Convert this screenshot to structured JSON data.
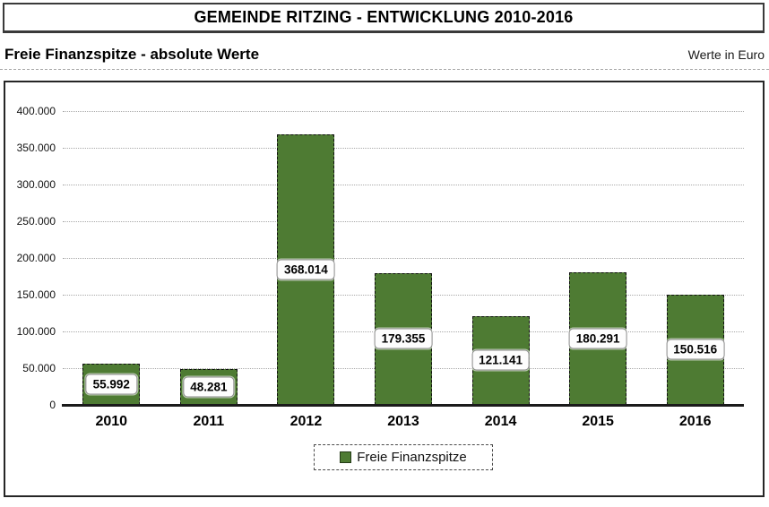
{
  "header": {
    "title": "GEMEINDE RITZING - ENTWICKLUNG 2010-2016",
    "subtitle": "Freie Finanzspitze - absolute Werte",
    "unit_label": "Werte in Euro"
  },
  "chart_data": {
    "type": "bar",
    "title": "Freie Finanzspitze - absolute Werte",
    "xlabel": "",
    "ylabel": "Werte in Euro",
    "categories": [
      "2010",
      "2011",
      "2012",
      "2013",
      "2014",
      "2015",
      "2016"
    ],
    "series": [
      {
        "name": "Freie Finanzspitze",
        "values": [
          55992,
          48281,
          368014,
          179355,
          121141,
          180291,
          150516
        ],
        "value_labels": [
          "55.992",
          "48.281",
          "368.014",
          "179.355",
          "121.141",
          "180.291",
          "150.516"
        ],
        "color": "#4e7b33"
      }
    ],
    "ylim": [
      0,
      400000
    ],
    "y_ticks": [
      {
        "value": 400000,
        "label": "400.000"
      },
      {
        "value": 350000,
        "label": "350.000"
      },
      {
        "value": 300000,
        "label": "300.000"
      },
      {
        "value": 250000,
        "label": "250.000"
      },
      {
        "value": 200000,
        "label": "200.000"
      },
      {
        "value": 150000,
        "label": "150.000"
      },
      {
        "value": 100000,
        "label": "100.000"
      },
      {
        "value": 50000,
        "label": "50.000"
      },
      {
        "value": 0,
        "label": "0"
      }
    ],
    "grid": "horizontal-dotted",
    "legend": {
      "position": "bottom",
      "label": "Freie Finanzspitze"
    }
  },
  "colors": {
    "bar_fill": "#4e7b33",
    "bar_border": "#111111",
    "gridline": "#a9a9a9",
    "axis": "#1a1a1a",
    "frame": "#262626"
  }
}
